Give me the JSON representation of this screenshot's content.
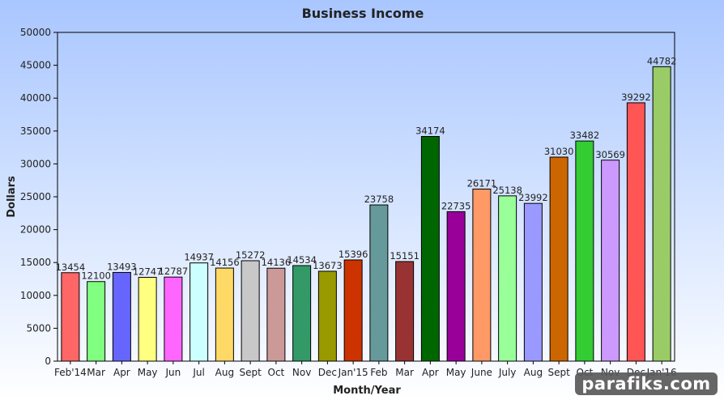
{
  "chart_data": {
    "type": "bar",
    "title": "Business Income",
    "xlabel": "Month/Year",
    "ylabel": "Dollars",
    "ylim": [
      0,
      50000
    ],
    "yticks": [
      0,
      5000,
      10000,
      15000,
      20000,
      25000,
      30000,
      35000,
      40000,
      45000,
      50000
    ],
    "grid": false,
    "legend": "none",
    "categories": [
      "Feb'14",
      "Mar",
      "Apr",
      "May",
      "Jun",
      "Jul",
      "Aug",
      "Sept",
      "Oct",
      "Nov",
      "Dec",
      "Jan'15",
      "Feb",
      "Mar",
      "Apr",
      "May",
      "June",
      "July",
      "Aug",
      "Sept",
      "Oct",
      "Nov",
      "Dec",
      "Jan'16"
    ],
    "values": [
      13454,
      12100,
      13493,
      12747,
      12787,
      14937,
      14156,
      15272,
      14136,
      14534,
      13673,
      15396,
      23758,
      15151,
      34174,
      22735,
      26171,
      25138,
      23992,
      31030,
      33482,
      30569,
      39292,
      44782
    ],
    "colors": [
      "#ff6666",
      "#80ff80",
      "#6666ff",
      "#ffff80",
      "#ff66ff",
      "#ccffff",
      "#ffd966",
      "#c8c8c8",
      "#cc9999",
      "#339966",
      "#999900",
      "#cc3300",
      "#669999",
      "#993333",
      "#006600",
      "#990099",
      "#ff9966",
      "#99ff99",
      "#9999ff",
      "#cc6600",
      "#33cc33",
      "#cc99ff",
      "#ff5555",
      "#99cc66"
    ]
  },
  "watermark": "parafiks.com"
}
